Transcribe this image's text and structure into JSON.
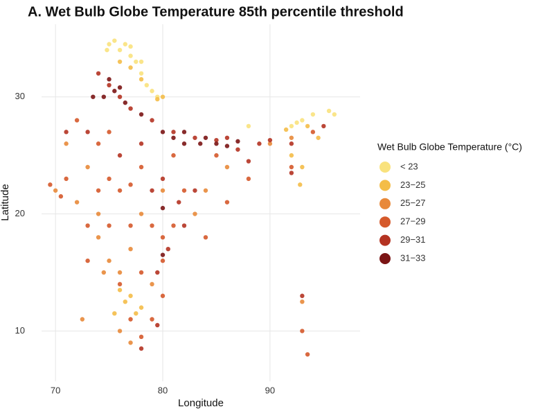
{
  "chart_data": {
    "type": "scatter",
    "title": "A. Wet Bulb Globe Temperature 85th percentile threshold",
    "x_label": "Longitude",
    "y_label": "Latitude",
    "legend_title": "Wet Bulb Globe Temperature (°C)",
    "xlim": [
      68.7,
      98.4
    ],
    "ylim": [
      5.7,
      36.2
    ],
    "xticks": [
      70,
      80,
      90
    ],
    "yticks": [
      10,
      20,
      30
    ],
    "grid": true,
    "series": [
      {
        "name": "< 23",
        "color": "#f9e27d",
        "x": [
          75,
          76,
          77,
          77.5,
          78,
          78.5,
          79,
          75.5,
          76.5,
          79.5,
          88,
          92,
          93,
          94,
          95.5,
          96,
          92.5,
          77,
          74.8,
          78
        ],
        "y": [
          34.5,
          34,
          33.5,
          33,
          32,
          31,
          30.5,
          34.8,
          34.5,
          30,
          27.5,
          27.5,
          28,
          28.5,
          28.8,
          28.5,
          27.8,
          34.3,
          34,
          33
        ]
      },
      {
        "name": "23−25",
        "color": "#f4bd48",
        "x": [
          76,
          77,
          78,
          79.5,
          80,
          91.5,
          93.5,
          94.5,
          92,
          93,
          76.5,
          77,
          77.5,
          76,
          92.8,
          75.5,
          78
        ],
        "y": [
          33,
          32.5,
          31.5,
          29.8,
          30,
          27.2,
          27.5,
          26.5,
          25,
          24,
          12.5,
          13,
          11.5,
          13.5,
          22.5,
          11.5,
          12
        ]
      },
      {
        "name": "25−27",
        "color": "#e8893a",
        "x": [
          74,
          75,
          76,
          77,
          74,
          72,
          73,
          71,
          80,
          83,
          78,
          76,
          77,
          74.5,
          79,
          86,
          84,
          92,
          90,
          72.5,
          93,
          70
        ],
        "y": [
          18,
          16,
          15,
          17,
          20,
          21,
          24,
          26,
          22,
          20,
          20,
          10,
          9,
          15,
          14,
          24,
          22,
          26.5,
          26,
          11,
          12.5,
          22
        ]
      },
      {
        "name": "27−29",
        "color": "#d5592b",
        "x": [
          73,
          75,
          77,
          79,
          81,
          82,
          76,
          78,
          74,
          72,
          75,
          80,
          78,
          76,
          77,
          78,
          79,
          80,
          84,
          86,
          88,
          85,
          92,
          94,
          71,
          69.5,
          70.5,
          93,
          93.5,
          73,
          75,
          81,
          77,
          80,
          74
        ],
        "y": [
          19,
          19,
          19,
          19,
          19,
          22,
          22,
          24,
          26,
          28,
          23,
          16,
          15,
          14,
          11,
          9.5,
          11,
          13,
          18,
          21,
          23,
          25,
          24,
          27,
          23,
          22.5,
          21.5,
          10,
          8,
          16,
          27,
          25,
          22.5,
          18,
          22
        ]
      },
      {
        "name": "29−31",
        "color": "#b43322",
        "x": [
          76,
          75,
          74,
          77,
          79,
          81,
          83,
          85,
          87,
          88,
          89,
          90,
          92,
          95,
          83,
          81.5,
          82,
          80.5,
          79.5,
          76,
          73,
          78,
          79,
          80,
          86,
          92,
          93,
          71,
          79.5,
          78
        ],
        "y": [
          30,
          31,
          32,
          29,
          28,
          27,
          26.5,
          26.3,
          25.5,
          24.5,
          26,
          26.3,
          26,
          27.5,
          22,
          21,
          19,
          17,
          15,
          25,
          27,
          26,
          22,
          23,
          26.5,
          23.5,
          13,
          27,
          10.5,
          8.5
        ]
      },
      {
        "name": "31−33",
        "color": "#7b1515",
        "x": [
          75,
          75.5,
          76,
          74.5,
          80,
          82,
          84,
          85,
          86,
          83.5,
          87,
          82,
          80,
          80,
          73.5,
          76.5,
          78,
          81
        ],
        "y": [
          31.5,
          30.5,
          30.8,
          30,
          27,
          27,
          26.5,
          26,
          25.8,
          26,
          26.2,
          26,
          20.5,
          16.5,
          30,
          29.5,
          28.5,
          26.5
        ]
      }
    ]
  }
}
